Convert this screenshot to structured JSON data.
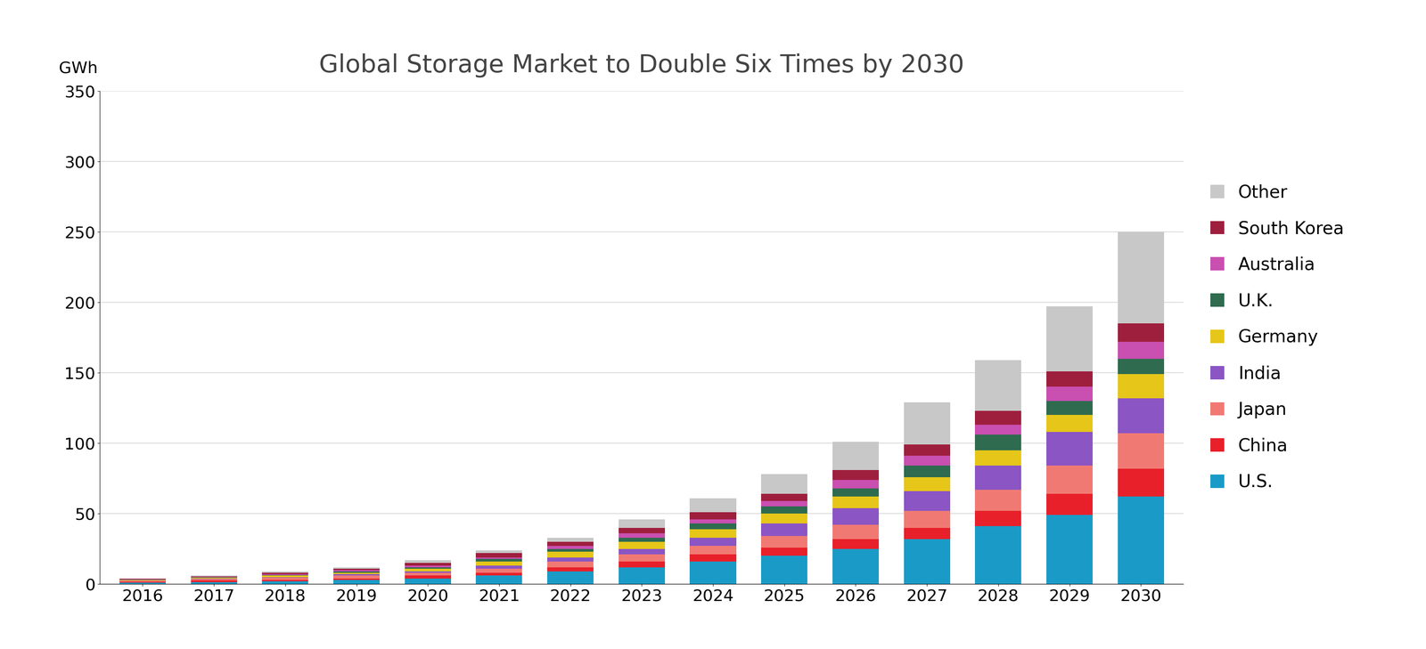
{
  "chart_data": {
    "type": "bar",
    "stacked": true,
    "grid": true,
    "legend": "center left",
    "title": "Global Storage Market to Double Six Times by 2030",
    "y_label": "GWh",
    "categories": [
      "2016",
      "2017",
      "2018",
      "2019",
      "2020",
      "2021",
      "2022",
      "2023",
      "2024",
      "2025",
      "2026",
      "2027",
      "2028",
      "2029",
      "2030"
    ],
    "ylim": [
      0,
      350
    ],
    "yticks": [
      0,
      50,
      100,
      150,
      200,
      250,
      300,
      350
    ],
    "series": [
      {
        "name": "U.S.",
        "color": "#1a9bc7",
        "values": [
          1,
          1.5,
          2,
          3,
          4,
          6,
          9,
          12,
          16,
          20,
          25,
          32,
          41,
          49,
          62
        ]
      },
      {
        "name": "China",
        "color": "#e8202a",
        "values": [
          0.8,
          1,
          1,
          1,
          2,
          2,
          3,
          4,
          5,
          6,
          7,
          8,
          11,
          15,
          20
        ]
      },
      {
        "name": "Japan",
        "color": "#f07a73",
        "values": [
          0.7,
          1,
          1.5,
          2,
          2,
          3,
          4,
          5,
          6,
          8,
          10,
          12,
          15,
          20,
          25
        ]
      },
      {
        "name": "India",
        "color": "#8b55c4",
        "values": [
          0.2,
          0.3,
          0.5,
          1,
          1,
          2,
          3,
          4,
          6,
          9,
          12,
          14,
          17,
          24,
          25
        ]
      },
      {
        "name": "Germany",
        "color": "#e6c619",
        "values": [
          0.4,
          0.7,
          1,
          1,
          2,
          3,
          4,
          5,
          6,
          7,
          8,
          10,
          11,
          12,
          17
        ]
      },
      {
        "name": "U.K.",
        "color": "#2e6b4f",
        "values": [
          0.2,
          0.3,
          0.5,
          1,
          1,
          2,
          2,
          3,
          4,
          5,
          6,
          8,
          11,
          10,
          11
        ]
      },
      {
        "name": "Australia",
        "color": "#c94fb0",
        "values": [
          0.2,
          0.3,
          0.5,
          1,
          1,
          1,
          2,
          3,
          3,
          4,
          6,
          7,
          7,
          10,
          12
        ]
      },
      {
        "name": "South Korea",
        "color": "#9e1f3d",
        "values": [
          0.3,
          0.5,
          1,
          1,
          2,
          3,
          3,
          4,
          5,
          5,
          7,
          8,
          10,
          11,
          13
        ]
      },
      {
        "name": "Other",
        "color": "#c8c8c8",
        "values": [
          0.2,
          0.4,
          1,
          1,
          2,
          2,
          3,
          6,
          10,
          14,
          20,
          30,
          36,
          46,
          65
        ]
      }
    ]
  }
}
